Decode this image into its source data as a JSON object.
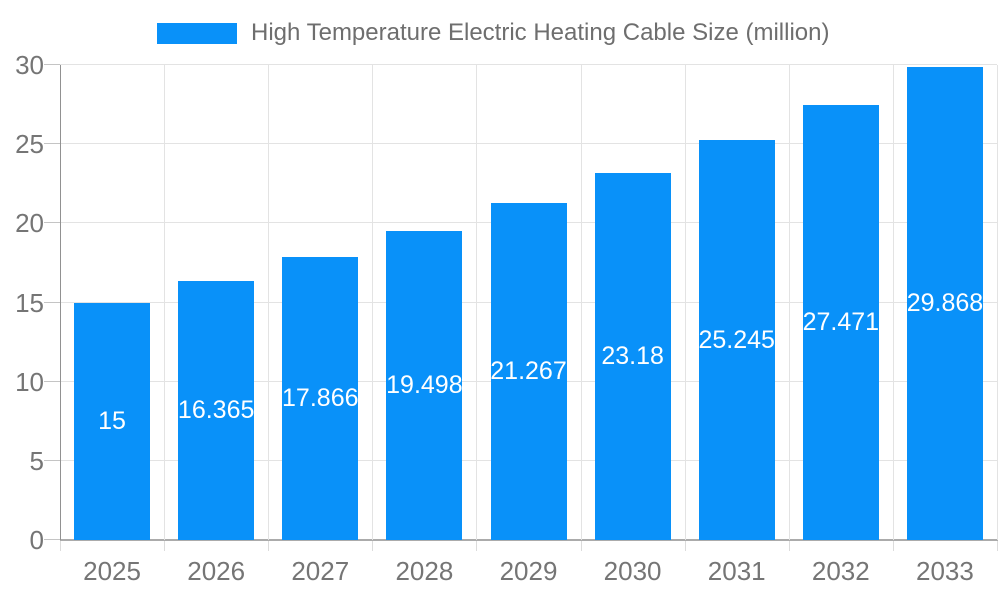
{
  "colors": {
    "bar": "#0991F9",
    "grid": "#E3E3E3",
    "y_axis_line": "#919191",
    "x_axis_line": "#ABABAB",
    "axis_label_text": "#757575",
    "title_text": "#6E6E6E",
    "value_label_text": "#FFFFFF",
    "background": "#FFFFFF"
  },
  "legend": {
    "label": "High Temperature Electric Heating Cable Size (million)",
    "position": "top"
  },
  "chart_data": {
    "type": "bar",
    "title": "High Temperature Electric Heating Cable Size (million)",
    "categories": [
      "2025",
      "2026",
      "2027",
      "2028",
      "2029",
      "2030",
      "2031",
      "2032",
      "2033"
    ],
    "values": [
      15,
      16.365,
      17.866,
      19.498,
      21.267,
      23.18,
      25.245,
      27.471,
      29.868
    ],
    "value_labels": [
      "15",
      "16.365",
      "17.866",
      "19.498",
      "21.267",
      "23.18",
      "25.245",
      "27.471",
      "29.868"
    ],
    "xlabel": "",
    "ylabel": "",
    "ylim": [
      0,
      30
    ],
    "yticks": [
      0,
      5,
      10,
      15,
      20,
      25,
      30
    ],
    "grid": true,
    "legend_position": "top",
    "bar_color": "#0991F9"
  }
}
